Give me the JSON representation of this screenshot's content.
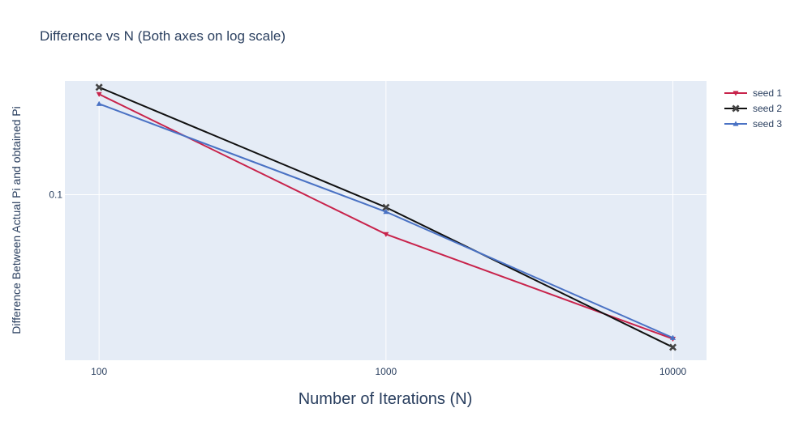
{
  "chart_data": {
    "type": "line",
    "title": "Difference vs N (Both axes on log scale)",
    "xlabel": "Number of Iterations (N)",
    "ylabel": "Difference Between Actual Pi and obtained Pi",
    "x_scale": "log",
    "y_scale": "log",
    "x": [
      100,
      1000,
      10000
    ],
    "x_ticks": [
      "100",
      "1000",
      "10000"
    ],
    "y_ticks": [
      {
        "value": 0.1,
        "label": "0.1"
      }
    ],
    "xlim": [
      76,
      13100
    ],
    "ylim": [
      0.0102,
      0.48
    ],
    "grid": true,
    "legend_position": "top-right",
    "plot_background": "#e5ecf6",
    "series": [
      {
        "name": "seed 1",
        "color": "#c8234b",
        "marker": "triangle-down",
        "values": [
          0.4,
          0.058,
          0.0137
        ]
      },
      {
        "name": "seed 2",
        "color": "#111111",
        "marker": "x",
        "values": [
          0.44,
          0.084,
          0.0122
        ]
      },
      {
        "name": "seed 3",
        "color": "#4a72c4",
        "marker": "triangle-up",
        "values": [
          0.35,
          0.079,
          0.0139
        ]
      }
    ]
  }
}
